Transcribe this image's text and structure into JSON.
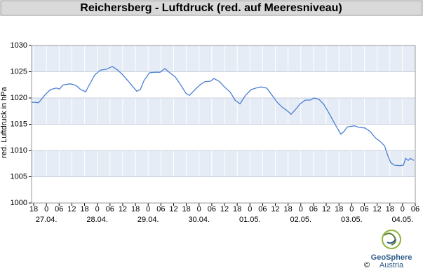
{
  "chart_data": {
    "type": "line",
    "title": "Reichersberg - Luftdruck (red. auf Meeresniveau)",
    "y_label": "red. Luftdruck in hPa",
    "brand": [
      "GeoSphere",
      "Austria"
    ],
    "copyright": "©",
    "ylim": [
      1000,
      1030
    ],
    "yticks": [
      1000,
      1005,
      1010,
      1015,
      1020,
      1025,
      1030
    ],
    "xlim": [
      -1,
      180
    ],
    "xticks": [
      {
        "value": 0,
        "label": "18"
      },
      {
        "value": 6,
        "label": "0"
      },
      {
        "value": 12,
        "label": "06"
      },
      {
        "value": 18,
        "label": "12"
      },
      {
        "value": 24,
        "label": "18"
      },
      {
        "value": 30,
        "label": "0"
      },
      {
        "value": 36,
        "label": "06"
      },
      {
        "value": 42,
        "label": "12"
      },
      {
        "value": 48,
        "label": "18"
      },
      {
        "value": 54,
        "label": "0"
      },
      {
        "value": 60,
        "label": "06"
      },
      {
        "value": 66,
        "label": "12"
      },
      {
        "value": 72,
        "label": "18"
      },
      {
        "value": 78,
        "label": "0"
      },
      {
        "value": 84,
        "label": "06"
      },
      {
        "value": 90,
        "label": "12"
      },
      {
        "value": 96,
        "label": "18"
      },
      {
        "value": 102,
        "label": "0"
      },
      {
        "value": 108,
        "label": "06"
      },
      {
        "value": 114,
        "label": "12"
      },
      {
        "value": 120,
        "label": "18"
      },
      {
        "value": 126,
        "label": "0"
      },
      {
        "value": 132,
        "label": "06"
      },
      {
        "value": 138,
        "label": "12"
      },
      {
        "value": 144,
        "label": "18"
      },
      {
        "value": 150,
        "label": "0"
      },
      {
        "value": 156,
        "label": "06"
      },
      {
        "value": 162,
        "label": "12"
      },
      {
        "value": 168,
        "label": "18"
      },
      {
        "value": 174,
        "label": "0"
      },
      {
        "value": 180,
        "label": "06"
      }
    ],
    "date_labels": [
      {
        "value": 6,
        "label": "27.04."
      },
      {
        "value": 30,
        "label": "28.04."
      },
      {
        "value": 54,
        "label": "29.04."
      },
      {
        "value": 78,
        "label": "30.04."
      },
      {
        "value": 102,
        "label": "01.05."
      },
      {
        "value": 126,
        "label": "02.05."
      },
      {
        "value": 150,
        "label": "03.05."
      },
      {
        "value": 174,
        "label": "04.05."
      }
    ],
    "band_color": "#e6ecf5",
    "grid_color": "#ffffff",
    "series": [
      {
        "color": "#4a7fd4",
        "x": [
          -1,
          2.3,
          5.6,
          7.9,
          10.6,
          12.2,
          13.9,
          17.2,
          19.9,
          22.2,
          24.5,
          26.1,
          28.8,
          31.4,
          34.4,
          37.1,
          39.7,
          42.0,
          45.3,
          48.6,
          50.3,
          52.0,
          54.6,
          56.9,
          59.6,
          61.9,
          64.2,
          66.8,
          69.5,
          71.8,
          73.5,
          76.1,
          78.4,
          80.7,
          83.4,
          85.0,
          87.4,
          90.0,
          92.7,
          95.0,
          97.3,
          99.9,
          102.6,
          104.9,
          107.2,
          109.9,
          112.5,
          114.8,
          117.1,
          119.8,
          121.4,
          123.1,
          125.7,
          128.1,
          130.4,
          132.4,
          134.7,
          137.0,
          139.6,
          142.3,
          144.9,
          146.3,
          147.9,
          151.2,
          153.5,
          156.2,
          158.8,
          161.2,
          163.5,
          165.5,
          166.8,
          168.4,
          170.1,
          172.7,
          174.4,
          175.4,
          176.7,
          177.7,
          179.4
        ],
        "values": [
          1019.2,
          1019.1,
          1020.7,
          1021.6,
          1021.9,
          1021.7,
          1022.5,
          1022.7,
          1022.4,
          1021.6,
          1021.2,
          1022.4,
          1024.4,
          1025.3,
          1025.5,
          1026.0,
          1025.3,
          1024.4,
          1022.9,
          1021.3,
          1021.6,
          1023.3,
          1024.8,
          1024.9,
          1024.9,
          1025.6,
          1024.8,
          1024.0,
          1022.4,
          1020.9,
          1020.5,
          1021.6,
          1022.5,
          1023.1,
          1023.2,
          1023.7,
          1023.2,
          1022.1,
          1021.1,
          1019.6,
          1018.9,
          1020.5,
          1021.6,
          1021.9,
          1022.1,
          1021.9,
          1020.5,
          1019.2,
          1018.3,
          1017.5,
          1016.9,
          1017.6,
          1018.9,
          1019.6,
          1019.6,
          1020.0,
          1019.7,
          1018.7,
          1016.9,
          1014.9,
          1013.1,
          1013.6,
          1014.5,
          1014.7,
          1014.4,
          1014.3,
          1013.6,
          1012.4,
          1011.7,
          1010.9,
          1009.3,
          1007.7,
          1007.2,
          1007.1,
          1007.2,
          1008.5,
          1008.1,
          1008.5,
          1008.1
        ]
      }
    ]
  }
}
